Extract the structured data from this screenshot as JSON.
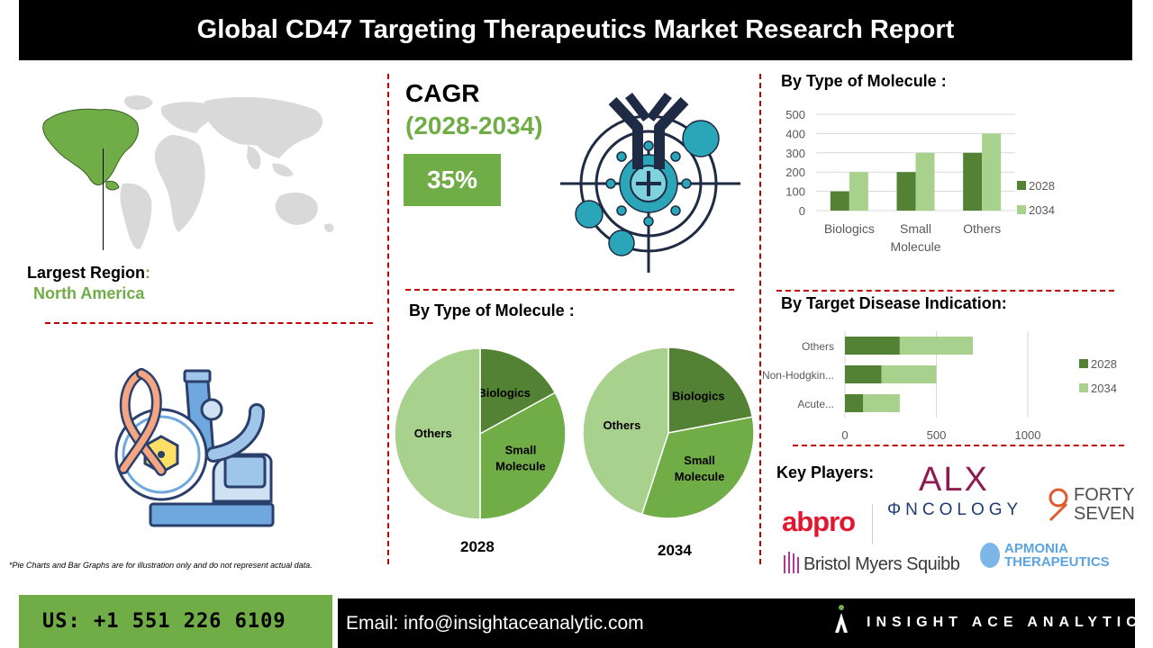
{
  "title": "Global CD47 Targeting Therapeutics Market Research Report",
  "region": {
    "label": "Largest Region",
    "colon": ":",
    "value": "North America"
  },
  "cagr": {
    "label": "CAGR",
    "period": "(2028-2034)",
    "value": "35%"
  },
  "pie_section_title": "By Type of Molecule :",
  "bar_section_title": "By Type of Molecule :",
  "hbar_section_title": "By Target Disease Indication:",
  "key_players_title": "Key Players:",
  "footnote": "*Pie Charts and Bar Graphs are for illustration only and do not represent actual data.",
  "players": {
    "alx": "ALX",
    "alx_sub": "ΦNCOLOGY",
    "fortyseven_1": "FORTY",
    "fortyseven_2": "SEVEN",
    "abpro": "abpro",
    "bms": "Bristol Myers Squibb",
    "apmonia_1": "APMONIA",
    "apmonia_2": "THERAPEUTICS"
  },
  "footer": {
    "phone": "US: +1 551 226 6109",
    "email": "Email: info@insightaceanalytic.com",
    "brand": "INSIGHT ACE ANALYTIC"
  },
  "colors": {
    "dark_green": "#548235",
    "mid_green": "#70ad47",
    "light_green": "#a9d18e",
    "accent_green": "#70ad47",
    "divider_red": "#c00000"
  },
  "chart_data": [
    {
      "type": "pie",
      "title": "2028",
      "labels": [
        "Biologics",
        "Small Molecule",
        "Others"
      ],
      "values": [
        17,
        33,
        50
      ]
    },
    {
      "type": "pie",
      "title": "2034",
      "labels": [
        "Biologics",
        "Small Molecule",
        "Others"
      ],
      "values": [
        22,
        33,
        45
      ]
    },
    {
      "type": "bar",
      "categories": [
        "Biologics",
        "Small Molecule",
        "Others"
      ],
      "category_lines": [
        [
          "Biologics"
        ],
        [
          "Small",
          "Molecule"
        ],
        [
          "Others"
        ]
      ],
      "series": [
        {
          "name": "2028",
          "values": [
            100,
            200,
            300
          ],
          "color": "#548235"
        },
        {
          "name": "2034",
          "values": [
            200,
            300,
            400
          ],
          "color": "#a9d18e"
        }
      ],
      "ylim": [
        0,
        500
      ],
      "yticks": [
        "0",
        "100",
        "200",
        "300",
        "400",
        "500"
      ],
      "grid": true,
      "legend": "right"
    },
    {
      "type": "bar",
      "orientation": "horizontal",
      "stacked": true,
      "categories": [
        "Others",
        "Non-Hodgkin...",
        "Acute..."
      ],
      "series": [
        {
          "name": "2028",
          "values": [
            300,
            200,
            100
          ],
          "color": "#548235"
        },
        {
          "name": "2034",
          "values": [
            400,
            300,
            200
          ],
          "color": "#a9d18e"
        }
      ],
      "xlim": [
        0,
        1000
      ],
      "xticks": [
        "0",
        "500",
        "1000"
      ],
      "grid": true,
      "legend": "right"
    }
  ]
}
